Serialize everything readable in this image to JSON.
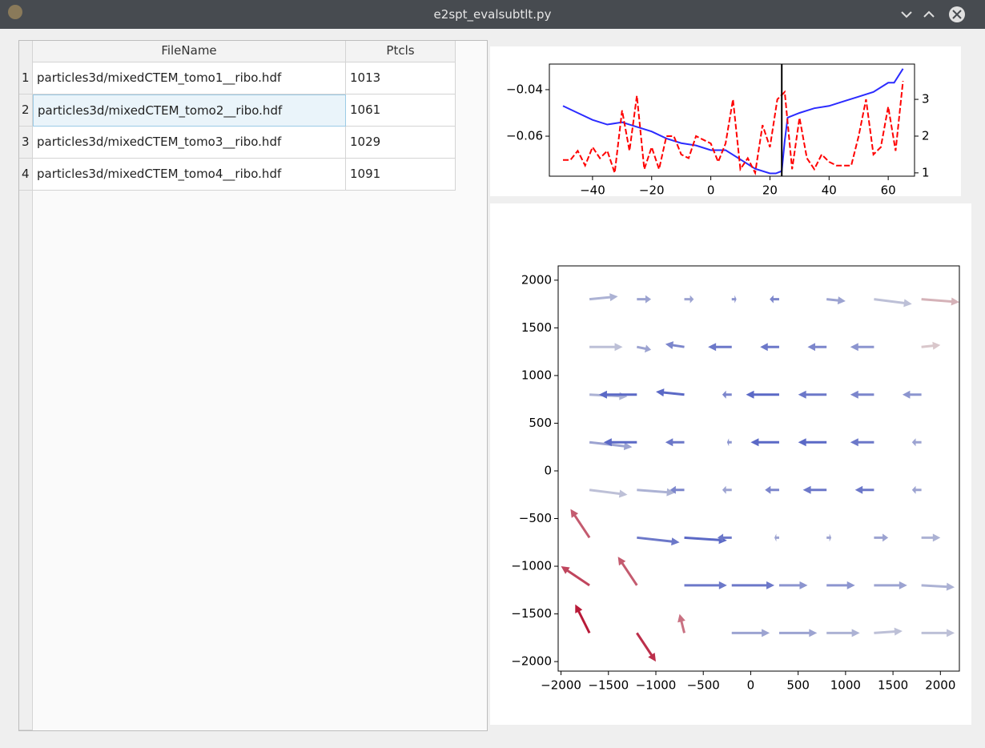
{
  "window": {
    "title": "e2spt_evalsubtlt.py"
  },
  "table": {
    "columns": [
      "FileName",
      "Ptcls"
    ],
    "row_numbers": [
      "1",
      "2",
      "3",
      "4"
    ],
    "rows": [
      [
        "particles3d/mixedCTEM_tomo1__ribo.hdf",
        1013
      ],
      [
        "particles3d/mixedCTEM_tomo2__ribo.hdf",
        1061
      ],
      [
        "particles3d/mixedCTEM_tomo3__ribo.hdf",
        1029
      ],
      [
        "particles3d/mixedCTEM_tomo4__ribo.hdf",
        1091
      ]
    ]
  },
  "chart_data": [
    {
      "type": "line",
      "xlim": [
        -54.6,
        68.9
      ],
      "ylim": [
        -0.0772,
        -0.029
      ],
      "y2lim": [
        0.91,
        3.96
      ],
      "xticks": [
        {
          "value": -40,
          "label": "−40"
        },
        {
          "value": -20,
          "label": "−20"
        },
        0,
        20,
        40,
        60
      ],
      "yticks": [
        {
          "value": -0.04,
          "label": "−0.04"
        },
        {
          "value": -0.06,
          "label": "−0.06"
        }
      ],
      "y2ticks": [
        1,
        2,
        3
      ],
      "vlines": [
        24
      ],
      "vline_color": "#000000",
      "series": [
        {
          "color": "#2b2bff",
          "style": "solid",
          "x": [
            -50,
            -45,
            -40,
            -35,
            -30,
            -25,
            -20,
            -15,
            -10,
            -5,
            0,
            5,
            10,
            15,
            20,
            22,
            24,
            25,
            26,
            30,
            35,
            40,
            45,
            50,
            55,
            60,
            62,
            65
          ],
          "values": [
            -0.047,
            -0.05,
            -0.053,
            -0.055,
            -0.054,
            -0.056,
            -0.058,
            -0.061,
            -0.063,
            -0.064,
            -0.066,
            -0.066,
            -0.07,
            -0.074,
            -0.076,
            -0.076,
            -0.075,
            -0.062,
            -0.052,
            -0.05,
            -0.048,
            -0.047,
            -0.045,
            -0.043,
            -0.041,
            -0.037,
            -0.037,
            -0.031
          ]
        },
        {
          "color": "#ff0000",
          "style": "dashed",
          "axis": "y2",
          "x": [
            -50,
            -47.5,
            -45,
            -42.5,
            -40,
            -37.5,
            -35,
            -32.5,
            -30,
            -27.5,
            -25,
            -22.5,
            -20,
            -17.5,
            -15,
            -12.5,
            -10,
            -7.5,
            -5,
            -2.5,
            0,
            2.5,
            5,
            7.5,
            10,
            12.5,
            15,
            17.5,
            20,
            22.5,
            25,
            27.5,
            30,
            32.5,
            35,
            37.5,
            40,
            42.5,
            45,
            47.5,
            50,
            52.5,
            55,
            57.5,
            60,
            62.5,
            65
          ],
          "values": [
            1.35,
            1.35,
            1.6,
            1.2,
            1.7,
            1.4,
            1.6,
            1.0,
            2.7,
            1.6,
            3.1,
            1.1,
            1.7,
            1.1,
            2.0,
            2.0,
            1.5,
            1.4,
            2.0,
            1.9,
            1.8,
            1.3,
            1.8,
            3.0,
            1.1,
            1.4,
            1.0,
            2.3,
            1.7,
            3.0,
            3.2,
            1.1,
            2.5,
            1.4,
            1.1,
            1.5,
            1.3,
            1.2,
            1.2,
            1.2,
            2.0,
            3.0,
            1.5,
            1.7,
            2.8,
            1.6,
            3.5
          ]
        }
      ]
    },
    {
      "type": "quiver",
      "xlim": [
        -2030,
        2200
      ],
      "ylim": [
        -2100,
        2150
      ],
      "xticks": [
        {
          "value": -2000,
          "label": "−2000"
        },
        {
          "value": -1500,
          "label": "−1500"
        },
        {
          "value": -1000,
          "label": "−1000"
        },
        {
          "value": -500,
          "label": "−500"
        },
        0,
        500,
        1000,
        1500,
        2000
      ],
      "yticks": [
        2000,
        1500,
        1000,
        500,
        0,
        {
          "value": -500,
          "label": "−500"
        },
        {
          "value": -1000,
          "label": "−1000"
        },
        {
          "value": -1500,
          "label": "−1500"
        },
        {
          "value": -2000,
          "label": "−2000"
        }
      ],
      "cmap": [
        "#3b4cc0",
        "#dddddd",
        "#b40426"
      ],
      "x": [
        -1700,
        -1200,
        -700,
        -200,
        300,
        800,
        1300,
        1800
      ],
      "y": [
        1800,
        1300,
        800,
        300,
        -200,
        -700,
        -1200,
        -1700
      ],
      "u": [
        [
          300,
          150,
          100,
          50,
          -100,
          200,
          400,
          400
        ],
        [
          350,
          150,
          -200,
          -250,
          -200,
          -200,
          -250,
          200
        ],
        [
          400,
          -400,
          -300,
          -100,
          -350,
          -300,
          -250,
          -200
        ],
        [
          450,
          -350,
          -200,
          -50,
          -300,
          -300,
          -250,
          -100
        ],
        [
          400,
          400,
          -150,
          -100,
          -150,
          -250,
          -200,
          -100
        ],
        [
          -200,
          450,
          450,
          -150,
          -50,
          50,
          150,
          200
        ],
        [
          -300,
          -200,
          450,
          450,
          300,
          300,
          350,
          350
        ],
        [
          -150,
          200,
          -50,
          400,
          400,
          350,
          300,
          350
        ]
      ],
      "v": [
        [
          30,
          0,
          0,
          0,
          0,
          -20,
          -50,
          -30
        ],
        [
          0,
          -30,
          30,
          0,
          0,
          0,
          0,
          20
        ],
        [
          -20,
          0,
          30,
          0,
          0,
          0,
          0,
          0
        ],
        [
          -50,
          0,
          0,
          0,
          0,
          0,
          0,
          0
        ],
        [
          -50,
          -30,
          0,
          0,
          0,
          0,
          0,
          0
        ],
        [
          300,
          -50,
          -30,
          0,
          0,
          0,
          0,
          0
        ],
        [
          200,
          300,
          0,
          0,
          0,
          0,
          0,
          -20
        ],
        [
          300,
          -300,
          200,
          0,
          0,
          0,
          20,
          0
        ]
      ],
      "c": [
        [
          0.35,
          0.3,
          0.3,
          0.25,
          0.2,
          0.3,
          0.4,
          0.6
        ],
        [
          0.4,
          0.3,
          0.2,
          0.15,
          0.15,
          0.2,
          0.25,
          0.55
        ],
        [
          0.35,
          0.1,
          0.1,
          0.2,
          0.1,
          0.15,
          0.2,
          0.25
        ],
        [
          0.3,
          0.1,
          0.15,
          0.25,
          0.1,
          0.1,
          0.15,
          0.3
        ],
        [
          0.4,
          0.35,
          0.2,
          0.3,
          0.2,
          0.15,
          0.15,
          0.3
        ],
        [
          0.8,
          0.15,
          0.1,
          0.15,
          0.3,
          0.3,
          0.3,
          0.35
        ],
        [
          0.85,
          0.8,
          0.15,
          0.15,
          0.25,
          0.25,
          0.3,
          0.35
        ],
        [
          0.95,
          0.9,
          0.75,
          0.3,
          0.3,
          0.35,
          0.4,
          0.4
        ]
      ]
    }
  ]
}
